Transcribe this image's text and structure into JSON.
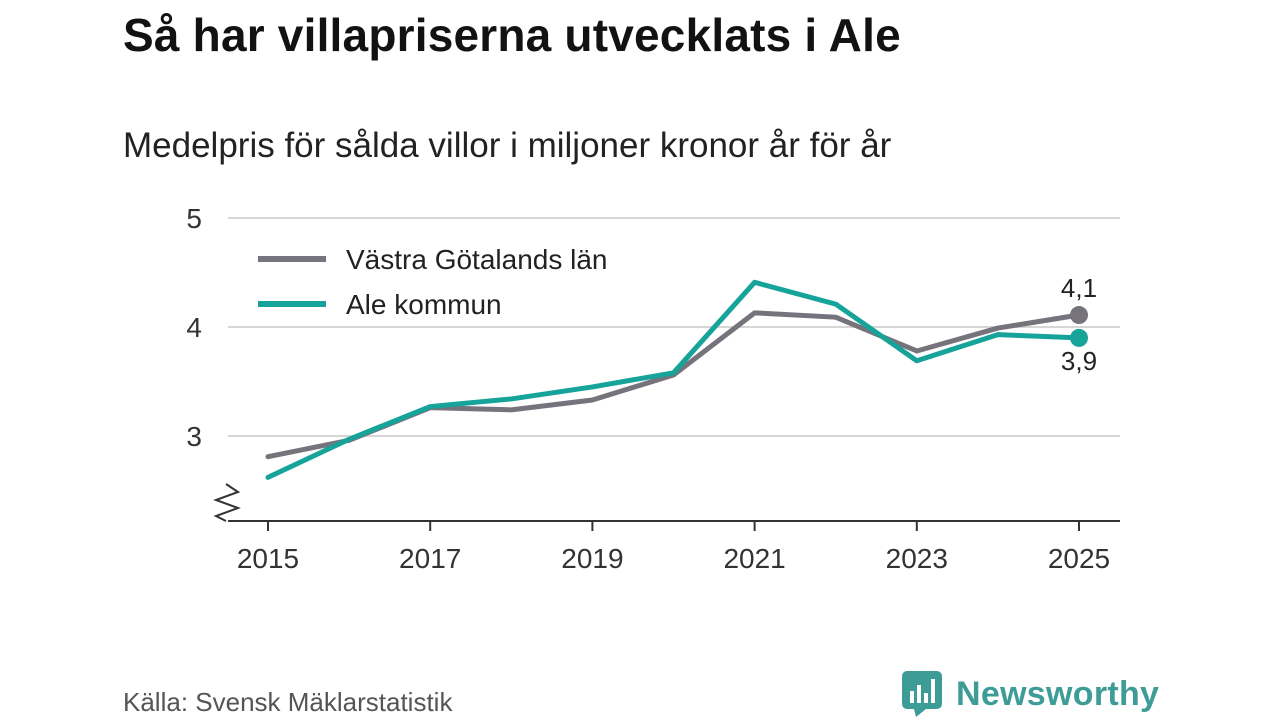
{
  "title": "Så har villapriserna utvecklats i Ale",
  "subtitle": "Medelpris för sålda villor i miljoner kronor år för år",
  "source": "Källa: Svensk Mäklarstatistik",
  "brand": "Newsworthy",
  "colors": {
    "vastra_gotaland": "#76737c",
    "ale": "#16a399",
    "grid": "#d6d6d6",
    "axis": "#333333",
    "brand": "#3d9c96"
  },
  "chart_data": {
    "type": "line",
    "title": "Så har villapriserna utvecklats i Ale",
    "subtitle": "Medelpris för sålda villor i miljoner kronor år för år",
    "xlabel": "",
    "ylabel": "",
    "x": [
      2015,
      2016,
      2017,
      2018,
      2019,
      2020,
      2021,
      2022,
      2023,
      2024,
      2025
    ],
    "x_ticks": [
      "2015",
      "2017",
      "2019",
      "2021",
      "2023",
      "2025"
    ],
    "y_ticks": [
      "3",
      "4",
      "5"
    ],
    "ylim": [
      2.2,
      5
    ],
    "axis_break": true,
    "grid": "horizontal",
    "legend_position": "top-left",
    "series": [
      {
        "name": "Västra Götalands län",
        "color_key": "vastra_gotaland",
        "values": [
          2.81,
          2.96,
          3.26,
          3.24,
          3.33,
          3.56,
          4.13,
          4.09,
          3.78,
          3.99,
          4.11
        ],
        "end_label": "4,1"
      },
      {
        "name": "Ale kommun",
        "color_key": "ale",
        "values": [
          2.62,
          2.97,
          3.27,
          3.34,
          3.45,
          3.58,
          4.41,
          4.21,
          3.69,
          3.93,
          3.9
        ],
        "end_label": "3,9"
      }
    ]
  }
}
